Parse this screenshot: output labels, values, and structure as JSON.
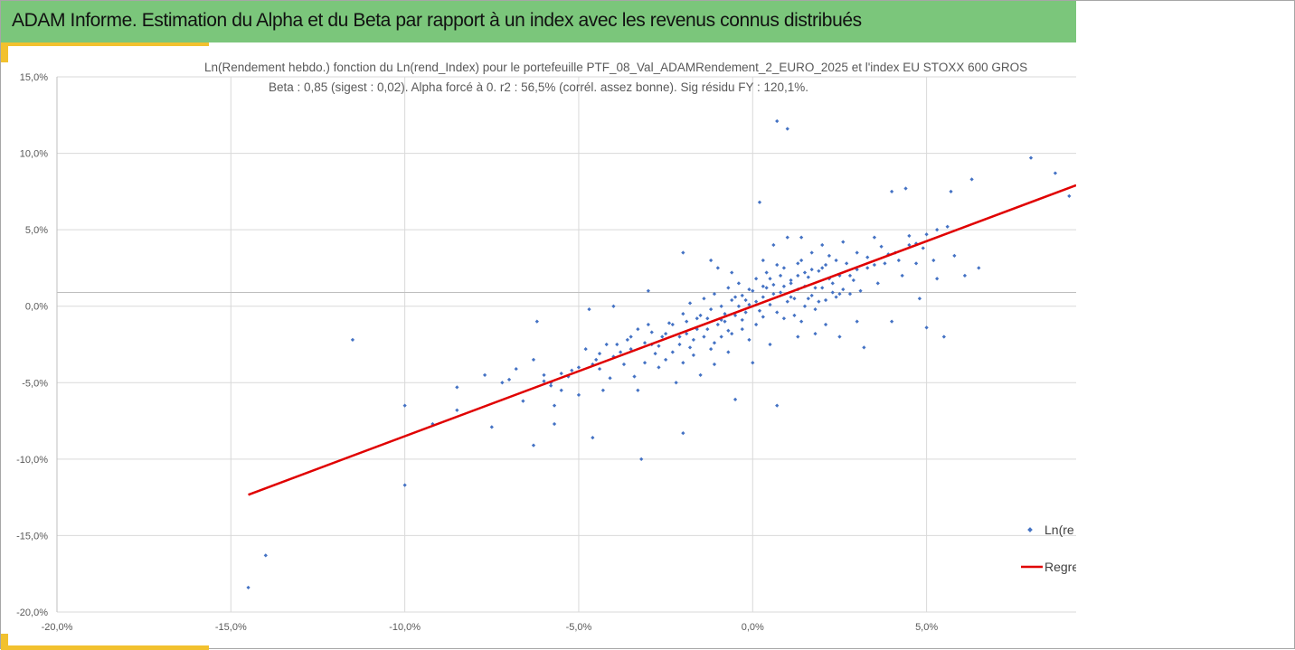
{
  "banner": {
    "title": "ADAM Informe. Estimation du Alpha et du Beta par rapport à un index avec les revenus connus distribués"
  },
  "colors": {
    "banner": "#7bc67b",
    "accent": "#f2c12e",
    "points": "#4472c4",
    "regression": "#e00000",
    "grid": "#d9d9d9"
  },
  "chart_data": {
    "type": "scatter",
    "title": "Ln(Rendement hebdo.) fonction du Ln(rend_Index) pour le portefeuille PTF_08_Val_ADAMRendement_2_EURO_2025 et l'index EU STOXX 600 GROS",
    "subtitle": "Beta : 0,85 (sigest : 0,02). Alpha forcé à 0. r2 : 56,5% (corrél. assez bonne). Sig résidu FY : 120,1%.",
    "xlabel": "",
    "ylabel": "",
    "xlim": [
      -0.2,
      0.093
    ],
    "ylim": [
      -0.2,
      0.15
    ],
    "x_ticks": [
      "-20,0%",
      "-15,0%",
      "-10,0%",
      "-5,0%",
      "0,0%",
      "5,0%"
    ],
    "y_ticks": [
      "15,0%",
      "10,0%",
      "5,0%",
      "0,0%",
      "-5,0%",
      "-10,0%",
      "-15,0%",
      "-20,0%"
    ],
    "grid": true,
    "legend_position": "right",
    "series": [
      {
        "name": "Ln(re",
        "kind": "scatter",
        "points": [
          [
            -0.145,
            -0.184
          ],
          [
            -0.14,
            -0.163
          ],
          [
            -0.115,
            -0.022
          ],
          [
            -0.1,
            -0.065
          ],
          [
            -0.1,
            -0.117
          ],
          [
            -0.092,
            -0.077
          ],
          [
            -0.085,
            -0.068
          ],
          [
            -0.085,
            -0.053
          ],
          [
            -0.077,
            -0.045
          ],
          [
            -0.075,
            -0.079
          ],
          [
            -0.072,
            -0.05
          ],
          [
            -0.07,
            -0.048
          ],
          [
            -0.068,
            -0.041
          ],
          [
            -0.066,
            -0.062
          ],
          [
            -0.063,
            -0.091
          ],
          [
            -0.063,
            -0.035
          ],
          [
            -0.062,
            -0.01
          ],
          [
            -0.06,
            -0.045
          ],
          [
            -0.058,
            -0.052
          ],
          [
            -0.057,
            -0.065
          ],
          [
            -0.057,
            -0.077
          ],
          [
            -0.055,
            -0.055
          ],
          [
            -0.052,
            -0.042
          ],
          [
            -0.05,
            -0.058
          ],
          [
            -0.048,
            -0.028
          ],
          [
            -0.047,
            -0.002
          ],
          [
            -0.046,
            -0.086
          ],
          [
            -0.045,
            -0.035
          ],
          [
            -0.044,
            -0.041
          ],
          [
            -0.043,
            -0.055
          ],
          [
            -0.041,
            -0.047
          ],
          [
            -0.04,
            -0.033
          ],
          [
            -0.039,
            -0.025
          ],
          [
            -0.037,
            -0.038
          ],
          [
            -0.035,
            -0.028
          ],
          [
            -0.034,
            -0.046
          ],
          [
            -0.033,
            -0.055
          ],
          [
            -0.032,
            -0.1
          ],
          [
            -0.031,
            -0.037
          ],
          [
            -0.03,
            -0.012
          ],
          [
            -0.029,
            -0.025
          ],
          [
            -0.028,
            -0.031
          ],
          [
            -0.027,
            -0.04
          ],
          [
            -0.026,
            -0.02
          ],
          [
            -0.025,
            -0.035
          ],
          [
            -0.024,
            -0.011
          ],
          [
            -0.023,
            -0.03
          ],
          [
            -0.022,
            -0.05
          ],
          [
            -0.021,
            -0.025
          ],
          [
            -0.02,
            -0.037
          ],
          [
            -0.02,
            -0.083
          ],
          [
            -0.019,
            -0.018
          ],
          [
            -0.018,
            -0.027
          ],
          [
            -0.017,
            -0.032
          ],
          [
            -0.016,
            -0.015
          ],
          [
            -0.015,
            -0.045
          ],
          [
            -0.014,
            -0.02
          ],
          [
            -0.013,
            -0.008
          ],
          [
            -0.012,
            -0.028
          ],
          [
            -0.011,
            -0.038
          ],
          [
            -0.01,
            -0.012
          ],
          [
            -0.009,
            -0.02
          ],
          [
            -0.008,
            -0.005
          ],
          [
            -0.007,
            -0.03
          ],
          [
            -0.006,
            -0.018
          ],
          [
            -0.005,
            -0.061
          ],
          [
            -0.004,
            0.0
          ],
          [
            -0.003,
            -0.015
          ],
          [
            -0.002,
            0.004
          ],
          [
            -0.001,
            -0.022
          ],
          [
            0.0,
            0.01
          ],
          [
            0.0,
            -0.037
          ],
          [
            0.001,
            0.003
          ],
          [
            0.002,
            0.068
          ],
          [
            0.003,
            -0.007
          ],
          [
            0.004,
            0.012
          ],
          [
            0.005,
            -0.025
          ],
          [
            0.006,
            0.008
          ],
          [
            0.007,
            0.121
          ],
          [
            0.007,
            -0.065
          ],
          [
            0.008,
            0.02
          ],
          [
            0.009,
            -0.008
          ],
          [
            0.01,
            0.116
          ],
          [
            0.011,
            0.015
          ],
          [
            0.012,
            0.005
          ],
          [
            0.013,
            0.028
          ],
          [
            0.014,
            -0.01
          ],
          [
            0.015,
            0.022
          ],
          [
            0.016,
            0.005
          ],
          [
            0.017,
            0.035
          ],
          [
            0.018,
            0.012
          ],
          [
            0.02,
            0.025
          ],
          [
            0.021,
            -0.012
          ],
          [
            0.022,
            0.018
          ],
          [
            0.024,
            0.03
          ],
          [
            0.025,
            0.008
          ],
          [
            0.026,
            0.042
          ],
          [
            0.028,
            0.02
          ],
          [
            0.03,
            0.035
          ],
          [
            0.031,
            0.01
          ],
          [
            0.032,
            -0.027
          ],
          [
            0.033,
            0.025
          ],
          [
            0.035,
            0.045
          ],
          [
            0.036,
            0.015
          ],
          [
            0.038,
            0.028
          ],
          [
            0.04,
            0.075
          ],
          [
            0.04,
            -0.01
          ],
          [
            0.041,
            0.035
          ],
          [
            0.043,
            0.02
          ],
          [
            0.044,
            0.077
          ],
          [
            0.045,
            0.04
          ],
          [
            0.047,
            0.028
          ],
          [
            0.048,
            0.005
          ],
          [
            0.05,
            0.047
          ],
          [
            0.05,
            -0.014
          ],
          [
            0.052,
            0.03
          ],
          [
            0.053,
            0.018
          ],
          [
            0.055,
            -0.02
          ],
          [
            0.056,
            0.052
          ],
          [
            0.057,
            0.075
          ],
          [
            0.058,
            0.033
          ],
          [
            0.061,
            0.02
          ],
          [
            0.063,
            0.083
          ],
          [
            0.065,
            0.025
          ],
          [
            0.08,
            0.097
          ],
          [
            0.087,
            0.087
          ],
          [
            0.091,
            0.072
          ],
          [
            -0.02,
            -0.005
          ],
          [
            -0.018,
            0.002
          ],
          [
            -0.016,
            -0.008
          ],
          [
            -0.014,
            0.005
          ],
          [
            -0.012,
            -0.002
          ],
          [
            -0.011,
            0.008
          ],
          [
            -0.009,
            0.0
          ],
          [
            -0.008,
            -0.01
          ],
          [
            -0.007,
            0.012
          ],
          [
            -0.006,
            0.004
          ],
          [
            -0.005,
            -0.006
          ],
          [
            -0.004,
            0.015
          ],
          [
            -0.003,
            0.007
          ],
          [
            -0.002,
            -0.004
          ],
          [
            -0.001,
            0.011
          ],
          [
            0.001,
            0.018
          ],
          [
            0.002,
            -0.003
          ],
          [
            0.003,
            0.006
          ],
          [
            0.004,
            0.022
          ],
          [
            0.005,
            0.001
          ],
          [
            0.006,
            0.014
          ],
          [
            0.007,
            -0.004
          ],
          [
            0.008,
            0.009
          ],
          [
            0.009,
            0.025
          ],
          [
            0.01,
            0.003
          ],
          [
            0.011,
            0.017
          ],
          [
            0.012,
            -0.006
          ],
          [
            0.013,
            0.011
          ],
          [
            0.014,
            0.03
          ],
          [
            0.015,
            0.0
          ],
          [
            0.016,
            0.019
          ],
          [
            0.017,
            0.007
          ],
          [
            0.018,
            -0.002
          ],
          [
            0.019,
            0.023
          ],
          [
            0.02,
            0.012
          ],
          [
            0.021,
            0.004
          ],
          [
            0.022,
            0.033
          ],
          [
            0.023,
            0.015
          ],
          [
            0.024,
            0.006
          ],
          [
            0.025,
            0.02
          ],
          [
            0.026,
            0.011
          ],
          [
            0.027,
            0.028
          ],
          [
            0.028,
            0.008
          ],
          [
            0.029,
            0.017
          ],
          [
            0.03,
            0.024
          ],
          [
            -0.025,
            -0.018
          ],
          [
            -0.023,
            -0.012
          ],
          [
            -0.021,
            -0.02
          ],
          [
            -0.019,
            -0.01
          ],
          [
            -0.017,
            -0.022
          ],
          [
            -0.015,
            -0.006
          ],
          [
            -0.013,
            -0.015
          ],
          [
            -0.011,
            -0.024
          ],
          [
            -0.009,
            -0.009
          ],
          [
            -0.007,
            -0.016
          ],
          [
            -0.005,
            0.006
          ],
          [
            -0.003,
            -0.009
          ],
          [
            -0.001,
            0.001
          ],
          [
            0.001,
            -0.012
          ],
          [
            0.003,
            0.013
          ],
          [
            0.005,
            0.018
          ],
          [
            0.007,
            0.027
          ],
          [
            0.009,
            0.013
          ],
          [
            0.011,
            0.006
          ],
          [
            0.013,
            0.02
          ],
          [
            0.015,
            0.013
          ],
          [
            0.017,
            0.024
          ],
          [
            0.019,
            0.003
          ],
          [
            0.021,
            0.027
          ],
          [
            0.023,
            0.009
          ],
          [
            -0.035,
            -0.02
          ],
          [
            -0.033,
            -0.015
          ],
          [
            -0.031,
            -0.024
          ],
          [
            -0.029,
            -0.017
          ],
          [
            -0.027,
            -0.026
          ],
          [
            -0.038,
            -0.03
          ],
          [
            -0.036,
            -0.022
          ],
          [
            -0.042,
            -0.025
          ],
          [
            -0.044,
            -0.031
          ],
          [
            -0.046,
            -0.038
          ],
          [
            -0.05,
            -0.04
          ],
          [
            -0.053,
            -0.046
          ],
          [
            -0.055,
            -0.044
          ],
          [
            -0.058,
            -0.05
          ],
          [
            -0.06,
            -0.049
          ],
          [
            0.033,
            0.032
          ],
          [
            0.035,
            0.027
          ],
          [
            0.037,
            0.039
          ],
          [
            0.039,
            0.034
          ],
          [
            0.042,
            0.03
          ],
          [
            0.045,
            0.046
          ],
          [
            0.047,
            0.041
          ],
          [
            0.049,
            0.038
          ],
          [
            0.053,
            0.05
          ],
          [
            0.006,
            0.04
          ],
          [
            0.01,
            0.045
          ],
          [
            0.013,
            -0.02
          ],
          [
            -0.01,
            0.025
          ],
          [
            -0.012,
            0.03
          ],
          [
            -0.02,
            0.035
          ],
          [
            -0.03,
            0.01
          ],
          [
            -0.04,
            0.0
          ],
          [
            0.025,
            -0.02
          ],
          [
            0.03,
            -0.01
          ],
          [
            0.018,
            -0.018
          ],
          [
            0.003,
            0.03
          ],
          [
            -0.006,
            0.022
          ],
          [
            0.02,
            0.04
          ],
          [
            0.014,
            0.045
          ]
        ]
      },
      {
        "name": "Regre",
        "kind": "line",
        "x": [
          -0.145,
          0.093
        ],
        "y": [
          -0.1233,
          0.0791
        ]
      }
    ]
  }
}
